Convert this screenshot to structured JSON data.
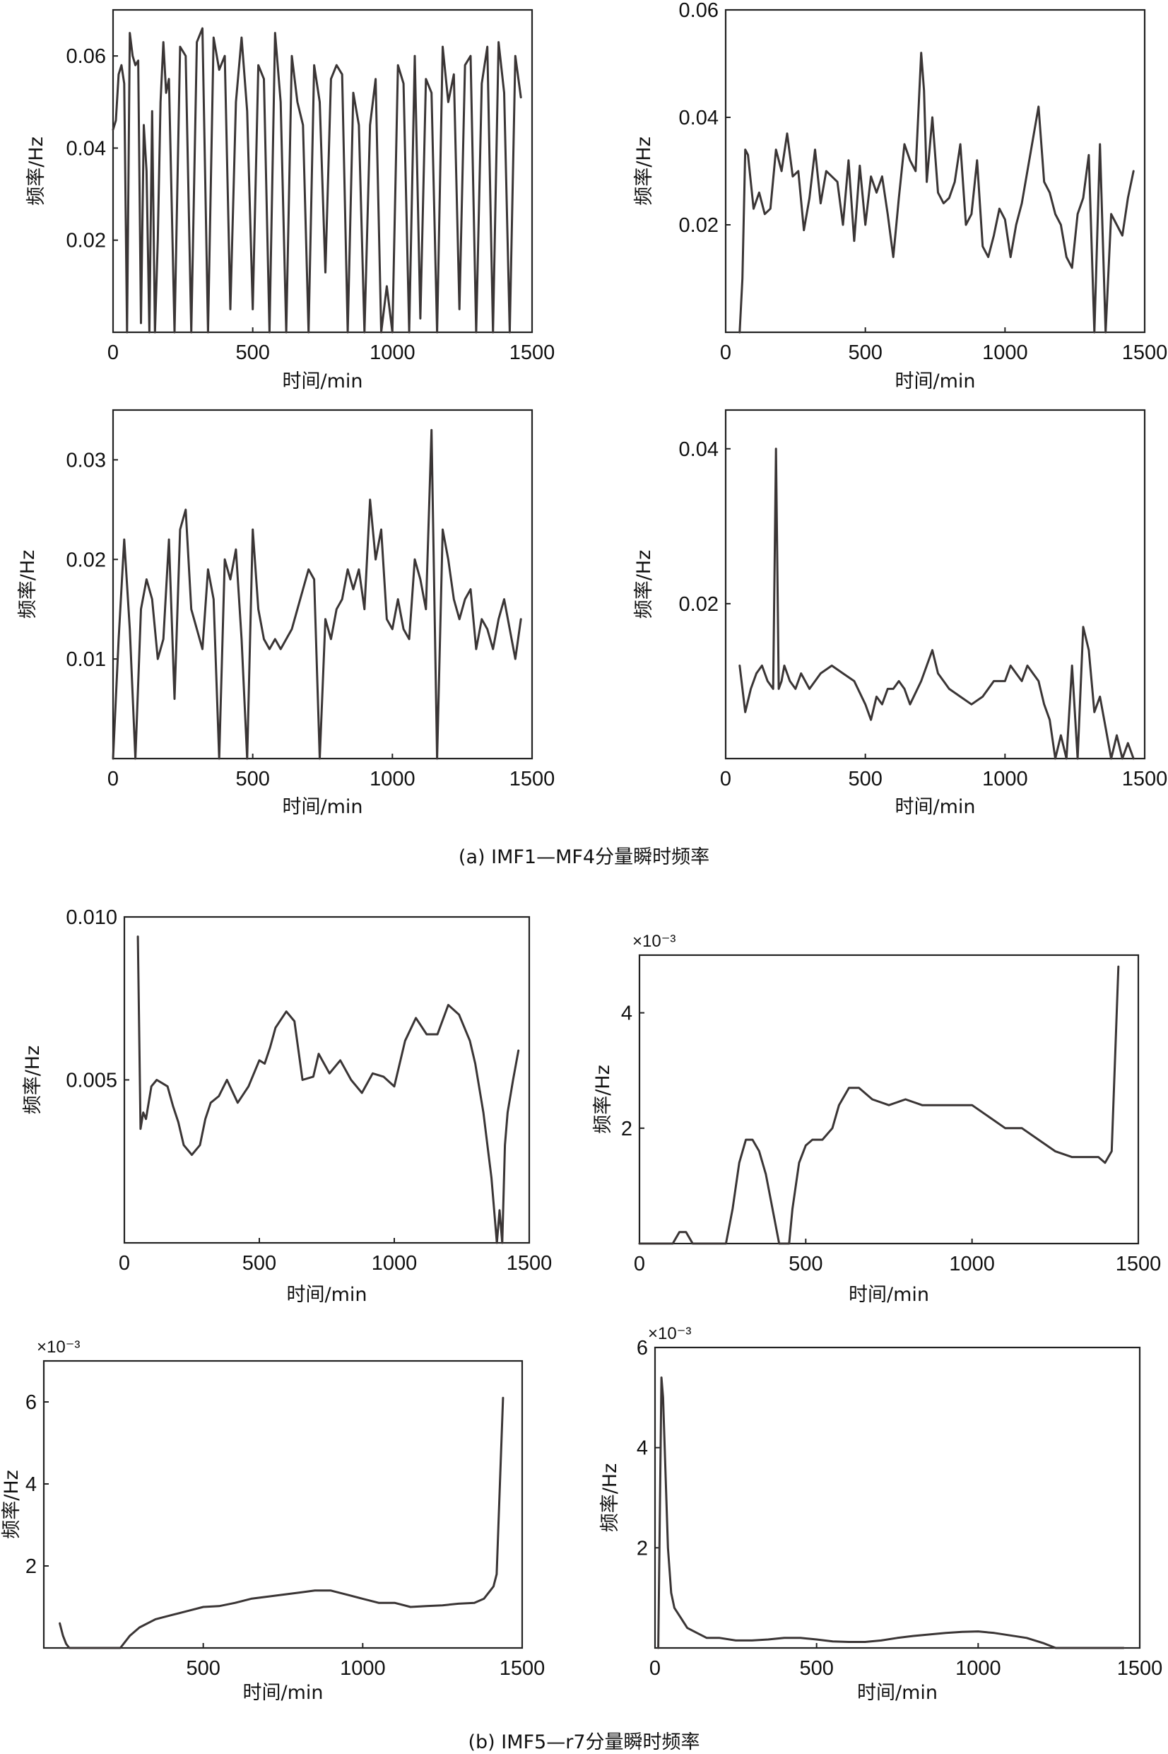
{
  "captions": {
    "a": "(a) IMF1—MF4分量瞬时频率",
    "b": "(b) IMF5—r7分量瞬时频率"
  },
  "chart_data": [
    {
      "type": "line",
      "xlabel": "时间/min",
      "ylabel": "频率/Hz",
      "xlim": [
        0,
        1500
      ],
      "ylim": [
        0,
        0.07
      ],
      "xticks": [
        "0",
        "500",
        "1000",
        "1500"
      ],
      "xtick_values": [
        0,
        500,
        1000,
        1500
      ],
      "yticks": [
        "0.02",
        "0.04",
        "0.06"
      ],
      "ytick_values": [
        0.02,
        0.04,
        0.06
      ],
      "exponent": "",
      "x": [
        0,
        10,
        20,
        30,
        40,
        50,
        60,
        70,
        80,
        90,
        100,
        110,
        120,
        130,
        140,
        150,
        160,
        170,
        180,
        190,
        200,
        220,
        240,
        260,
        280,
        300,
        320,
        340,
        360,
        380,
        400,
        420,
        440,
        460,
        480,
        500,
        520,
        540,
        560,
        580,
        600,
        620,
        640,
        660,
        680,
        700,
        720,
        740,
        760,
        780,
        800,
        820,
        840,
        860,
        880,
        900,
        920,
        940,
        960,
        980,
        1000,
        1020,
        1040,
        1060,
        1080,
        1100,
        1120,
        1140,
        1160,
        1180,
        1200,
        1220,
        1240,
        1260,
        1280,
        1300,
        1320,
        1340,
        1360,
        1380,
        1400,
        1420,
        1440,
        1460
      ],
      "y": [
        0.044,
        0.046,
        0.056,
        0.058,
        0.054,
        0.0,
        0.065,
        0.06,
        0.058,
        0.059,
        0.002,
        0.045,
        0.035,
        0.0,
        0.048,
        0.0,
        0.02,
        0.05,
        0.063,
        0.052,
        0.055,
        0.0,
        0.062,
        0.06,
        0.0,
        0.063,
        0.066,
        0.0,
        0.064,
        0.057,
        0.06,
        0.005,
        0.05,
        0.064,
        0.048,
        0.005,
        0.058,
        0.055,
        0.0,
        0.065,
        0.05,
        0.0,
        0.06,
        0.05,
        0.045,
        0.0,
        0.058,
        0.05,
        0.013,
        0.055,
        0.058,
        0.056,
        0.0,
        0.052,
        0.045,
        0.0,
        0.045,
        0.055,
        0.0,
        0.01,
        0.0,
        0.058,
        0.054,
        0.0,
        0.06,
        0.003,
        0.055,
        0.052,
        0.0,
        0.062,
        0.05,
        0.056,
        0.005,
        0.058,
        0.06,
        0.0,
        0.054,
        0.062,
        0.0,
        0.063,
        0.052,
        0.0,
        0.06,
        0.051
      ]
    },
    {
      "type": "line",
      "xlabel": "时间/min",
      "ylabel": "频率/Hz",
      "xlim": [
        0,
        1500
      ],
      "ylim": [
        0,
        0.06
      ],
      "xticks": [
        "0",
        "500",
        "1000",
        "1500"
      ],
      "xtick_values": [
        0,
        500,
        1000,
        1500
      ],
      "yticks": [
        "0.02",
        "0.04",
        "0.06"
      ],
      "ytick_values": [
        0.02,
        0.04,
        0.06
      ],
      "exponent": "",
      "x": [
        50,
        60,
        70,
        80,
        100,
        120,
        140,
        160,
        180,
        200,
        220,
        240,
        260,
        280,
        300,
        320,
        340,
        360,
        380,
        400,
        420,
        440,
        460,
        480,
        500,
        520,
        540,
        560,
        580,
        600,
        620,
        640,
        660,
        680,
        700,
        710,
        720,
        740,
        760,
        780,
        800,
        820,
        840,
        860,
        880,
        900,
        920,
        940,
        960,
        980,
        1000,
        1020,
        1040,
        1060,
        1080,
        1100,
        1120,
        1140,
        1160,
        1180,
        1200,
        1220,
        1240,
        1260,
        1280,
        1300,
        1320,
        1340,
        1360,
        1380,
        1400,
        1420,
        1440,
        1460
      ],
      "y": [
        0.0,
        0.01,
        0.034,
        0.033,
        0.023,
        0.026,
        0.022,
        0.023,
        0.034,
        0.03,
        0.037,
        0.029,
        0.03,
        0.019,
        0.025,
        0.034,
        0.024,
        0.03,
        0.029,
        0.028,
        0.02,
        0.032,
        0.017,
        0.031,
        0.02,
        0.029,
        0.026,
        0.029,
        0.022,
        0.014,
        0.025,
        0.035,
        0.032,
        0.03,
        0.052,
        0.045,
        0.028,
        0.04,
        0.026,
        0.024,
        0.025,
        0.028,
        0.035,
        0.02,
        0.022,
        0.032,
        0.016,
        0.014,
        0.018,
        0.023,
        0.021,
        0.014,
        0.02,
        0.024,
        0.03,
        0.036,
        0.042,
        0.028,
        0.026,
        0.022,
        0.02,
        0.014,
        0.012,
        0.022,
        0.025,
        0.033,
        0.0,
        0.035,
        0.0,
        0.022,
        0.02,
        0.018,
        0.025,
        0.03
      ]
    },
    {
      "type": "line",
      "xlabel": "时间/min",
      "ylabel": "频率/Hz",
      "xlim": [
        0,
        1500
      ],
      "ylim": [
        0,
        0.035
      ],
      "xticks": [
        "0",
        "500",
        "1000",
        "1500"
      ],
      "xtick_values": [
        0,
        500,
        1000,
        1500
      ],
      "yticks": [
        "0.01",
        "0.02",
        "0.03"
      ],
      "ytick_values": [
        0.01,
        0.02,
        0.03
      ],
      "exponent": "",
      "x": [
        0,
        20,
        40,
        60,
        80,
        100,
        120,
        140,
        160,
        180,
        200,
        220,
        240,
        260,
        280,
        300,
        320,
        340,
        360,
        380,
        400,
        420,
        440,
        460,
        480,
        500,
        520,
        540,
        560,
        580,
        600,
        620,
        640,
        660,
        680,
        700,
        720,
        740,
        760,
        780,
        800,
        820,
        840,
        860,
        880,
        900,
        920,
        940,
        960,
        980,
        1000,
        1020,
        1040,
        1060,
        1080,
        1100,
        1120,
        1140,
        1160,
        1180,
        1200,
        1220,
        1240,
        1260,
        1280,
        1300,
        1320,
        1340,
        1360,
        1380,
        1400,
        1420,
        1440,
        1460
      ],
      "y": [
        0.0,
        0.012,
        0.022,
        0.013,
        0.0,
        0.015,
        0.018,
        0.016,
        0.01,
        0.012,
        0.022,
        0.006,
        0.023,
        0.025,
        0.015,
        0.013,
        0.011,
        0.019,
        0.016,
        0.0,
        0.02,
        0.018,
        0.021,
        0.012,
        0.0,
        0.023,
        0.015,
        0.012,
        0.011,
        0.012,
        0.011,
        0.012,
        0.013,
        0.015,
        0.017,
        0.019,
        0.018,
        0.0,
        0.014,
        0.012,
        0.015,
        0.016,
        0.019,
        0.017,
        0.019,
        0.015,
        0.026,
        0.02,
        0.023,
        0.014,
        0.013,
        0.016,
        0.013,
        0.012,
        0.02,
        0.018,
        0.015,
        0.033,
        0.0,
        0.023,
        0.02,
        0.016,
        0.014,
        0.016,
        0.017,
        0.011,
        0.014,
        0.013,
        0.011,
        0.014,
        0.016,
        0.013,
        0.01,
        0.014
      ]
    },
    {
      "type": "line",
      "xlabel": "时间/min",
      "ylabel": "频率/Hz",
      "xlim": [
        0,
        1500
      ],
      "ylim": [
        0,
        0.045
      ],
      "xticks": [
        "0",
        "500",
        "1000",
        "1500"
      ],
      "xtick_values": [
        0,
        500,
        1000,
        1500
      ],
      "yticks": [
        "0.02",
        "0.04"
      ],
      "ytick_values": [
        0.02,
        0.04
      ],
      "exponent": "",
      "x": [
        50,
        70,
        90,
        110,
        130,
        150,
        170,
        180,
        190,
        200,
        210,
        230,
        250,
        270,
        300,
        340,
        380,
        420,
        460,
        500,
        520,
        540,
        560,
        580,
        600,
        620,
        640,
        660,
        700,
        720,
        740,
        760,
        780,
        800,
        840,
        880,
        920,
        960,
        1000,
        1020,
        1040,
        1060,
        1080,
        1100,
        1120,
        1140,
        1160,
        1180,
        1200,
        1220,
        1240,
        1260,
        1280,
        1300,
        1320,
        1340,
        1360,
        1380,
        1400,
        1420,
        1440,
        1460
      ],
      "y": [
        0.012,
        0.006,
        0.009,
        0.011,
        0.012,
        0.01,
        0.009,
        0.04,
        0.009,
        0.01,
        0.012,
        0.01,
        0.009,
        0.011,
        0.009,
        0.011,
        0.012,
        0.011,
        0.01,
        0.007,
        0.005,
        0.008,
        0.007,
        0.009,
        0.009,
        0.01,
        0.009,
        0.007,
        0.01,
        0.012,
        0.014,
        0.011,
        0.01,
        0.009,
        0.008,
        0.007,
        0.008,
        0.01,
        0.01,
        0.012,
        0.011,
        0.01,
        0.012,
        0.011,
        0.01,
        0.007,
        0.005,
        0.0,
        0.003,
        0.0,
        0.012,
        0.0,
        0.017,
        0.014,
        0.006,
        0.008,
        0.004,
        0.0,
        0.003,
        0.0,
        0.002,
        0.0
      ]
    },
    {
      "type": "line",
      "xlabel": "时间/min",
      "ylabel": "频率/Hz",
      "xlim": [
        0,
        1500
      ],
      "ylim": [
        0,
        0.01
      ],
      "xticks": [
        "0",
        "500",
        "1000",
        "1500"
      ],
      "xtick_values": [
        0,
        500,
        1000,
        1500
      ],
      "yticks": [
        "0.005",
        "0.010"
      ],
      "ytick_values": [
        0.005,
        0.01
      ],
      "exponent": "",
      "x": [
        50,
        60,
        70,
        80,
        100,
        120,
        140,
        160,
        180,
        200,
        220,
        250,
        280,
        300,
        320,
        350,
        380,
        420,
        460,
        500,
        520,
        540,
        560,
        600,
        630,
        660,
        700,
        720,
        760,
        800,
        840,
        880,
        920,
        960,
        1000,
        1040,
        1080,
        1120,
        1160,
        1200,
        1240,
        1280,
        1300,
        1330,
        1360,
        1380,
        1390,
        1400,
        1410,
        1420,
        1440,
        1460
      ],
      "y": [
        0.0094,
        0.0035,
        0.004,
        0.0038,
        0.0048,
        0.005,
        0.0049,
        0.0048,
        0.0042,
        0.0037,
        0.003,
        0.0027,
        0.003,
        0.0038,
        0.0043,
        0.0045,
        0.005,
        0.0043,
        0.0048,
        0.0056,
        0.0055,
        0.006,
        0.0066,
        0.0071,
        0.0068,
        0.005,
        0.0051,
        0.0058,
        0.0052,
        0.0056,
        0.005,
        0.0046,
        0.0052,
        0.0051,
        0.0048,
        0.0062,
        0.0069,
        0.0064,
        0.0064,
        0.0073,
        0.007,
        0.0062,
        0.0055,
        0.004,
        0.002,
        0.0,
        0.001,
        0.0,
        0.003,
        0.004,
        0.005,
        0.0059
      ]
    },
    {
      "type": "line",
      "xlabel": "时间/min",
      "ylabel": "频率/Hz",
      "xlim": [
        0,
        1500
      ],
      "ylim": [
        0,
        0.005
      ],
      "xticks": [
        "0",
        "500",
        "1000",
        "1500"
      ],
      "xtick_values": [
        0,
        500,
        1000,
        1500
      ],
      "yticks": [
        "2",
        "4"
      ],
      "ytick_values": [
        0.002,
        0.004
      ],
      "exponent": "×10⁻³",
      "x": [
        0,
        50,
        100,
        120,
        140,
        160,
        180,
        230,
        260,
        280,
        300,
        320,
        340,
        360,
        380,
        400,
        420,
        440,
        450,
        460,
        480,
        500,
        520,
        550,
        580,
        600,
        630,
        660,
        700,
        750,
        800,
        850,
        900,
        950,
        1000,
        1050,
        1100,
        1150,
        1200,
        1250,
        1300,
        1350,
        1380,
        1400,
        1420,
        1440
      ],
      "y": [
        0.0,
        0.0,
        0.0,
        0.0002,
        0.0002,
        0.0,
        0.0,
        0.0,
        0.0,
        0.0006,
        0.0014,
        0.0018,
        0.0018,
        0.0016,
        0.0012,
        0.0006,
        0.0,
        0.0,
        0.0,
        0.0006,
        0.0014,
        0.0017,
        0.0018,
        0.0018,
        0.002,
        0.0024,
        0.0027,
        0.0027,
        0.0025,
        0.0024,
        0.0025,
        0.0024,
        0.0024,
        0.0024,
        0.0024,
        0.0022,
        0.002,
        0.002,
        0.0018,
        0.0016,
        0.0015,
        0.0015,
        0.0015,
        0.0014,
        0.0016,
        0.0048
      ]
    },
    {
      "type": "line",
      "xlabel": "时间/min",
      "ylabel": "频率/Hz",
      "xlim": [
        0,
        1500
      ],
      "ylim": [
        0,
        0.007
      ],
      "xticks": [
        "500",
        "1000",
        "1500"
      ],
      "xtick_values": [
        500,
        1000,
        1500
      ],
      "yticks": [
        "2",
        "4",
        "6"
      ],
      "ytick_values": [
        0.002,
        0.004,
        0.006
      ],
      "exponent": "×10⁻³",
      "x": [
        50,
        60,
        70,
        80,
        100,
        150,
        200,
        240,
        270,
        300,
        350,
        400,
        450,
        500,
        550,
        600,
        650,
        700,
        750,
        800,
        850,
        900,
        950,
        1000,
        1050,
        1100,
        1150,
        1200,
        1250,
        1300,
        1350,
        1380,
        1400,
        1410,
        1420,
        1440
      ],
      "y": [
        0.0006,
        0.0003,
        0.0001,
        0.0,
        0.0,
        0.0,
        0.0,
        0.0,
        0.0003,
        0.0005,
        0.0007,
        0.0008,
        0.0009,
        0.001,
        0.00102,
        0.0011,
        0.0012,
        0.00125,
        0.0013,
        0.00135,
        0.0014,
        0.0014,
        0.0013,
        0.0012,
        0.0011,
        0.0011,
        0.001,
        0.00102,
        0.00104,
        0.00108,
        0.0011,
        0.0012,
        0.0014,
        0.0015,
        0.0018,
        0.0061
      ]
    },
    {
      "type": "line",
      "xlabel": "时间/min",
      "ylabel": "频率/Hz",
      "xlim": [
        0,
        1500
      ],
      "ylim": [
        0,
        0.006
      ],
      "xticks": [
        "0",
        "500",
        "1000",
        "1500"
      ],
      "xtick_values": [
        0,
        500,
        1000,
        1500
      ],
      "yticks": [
        "2",
        "4",
        "6"
      ],
      "ytick_values": [
        0.002,
        0.004,
        0.006
      ],
      "exponent": "×10⁻³",
      "x": [
        10,
        20,
        25,
        30,
        40,
        50,
        60,
        80,
        100,
        130,
        160,
        200,
        250,
        300,
        350,
        400,
        450,
        500,
        550,
        600,
        650,
        700,
        750,
        800,
        850,
        900,
        950,
        1000,
        1050,
        1100,
        1150,
        1200,
        1240,
        1260,
        1300,
        1350,
        1400,
        1450
      ],
      "y": [
        0.0,
        0.0054,
        0.005,
        0.004,
        0.002,
        0.0011,
        0.0008,
        0.0006,
        0.0004,
        0.0003,
        0.0002,
        0.0002,
        0.00015,
        0.00015,
        0.00017,
        0.0002,
        0.0002,
        0.00017,
        0.00013,
        0.00012,
        0.00012,
        0.00015,
        0.0002,
        0.00024,
        0.00027,
        0.0003,
        0.00032,
        0.00033,
        0.0003,
        0.00025,
        0.0002,
        0.0001,
        0.0,
        0.0,
        0.0,
        0.0,
        0.0,
        0.0
      ]
    }
  ]
}
